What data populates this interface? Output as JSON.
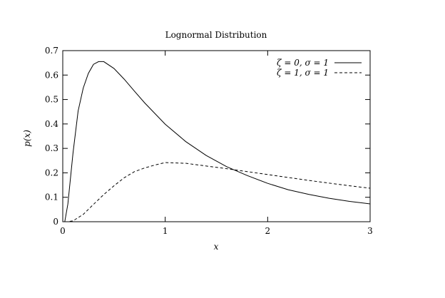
{
  "chart_data": {
    "type": "line",
    "title": "Lognormal Distribution",
    "xlabel": "x",
    "ylabel": "p(x)",
    "xlim": [
      0,
      3
    ],
    "ylim": [
      0,
      0.7
    ],
    "xticks": [
      "0",
      "1",
      "2",
      "3"
    ],
    "yticks": [
      "0",
      "0.1",
      "0.2",
      "0.3",
      "0.4",
      "0.5",
      "0.6",
      "0.7"
    ],
    "grid": false,
    "legend_position": "top-right",
    "series": [
      {
        "name": "ζ = 0, σ = 1",
        "zeta": 0,
        "sigma": 1,
        "style": "solid",
        "x": [
          0.02,
          0.05,
          0.1,
          0.15,
          0.2,
          0.25,
          0.3,
          0.35,
          0.4,
          0.5,
          0.6,
          0.7,
          0.8,
          1.0,
          1.2,
          1.4,
          1.6,
          1.8,
          2.0,
          2.2,
          2.4,
          2.6,
          2.8,
          3.0
        ],
        "y": [
          0.0009,
          0.0726,
          0.281,
          0.453,
          0.547,
          0.607,
          0.644,
          0.655,
          0.655,
          0.627,
          0.583,
          0.534,
          0.486,
          0.399,
          0.328,
          0.271,
          0.225,
          0.189,
          0.157,
          0.131,
          0.112,
          0.096,
          0.083,
          0.073
        ]
      },
      {
        "name": "ζ = 1, σ = 1",
        "zeta": 1,
        "sigma": 1,
        "style": "dashed",
        "x": [
          0.02,
          0.05,
          0.1,
          0.2,
          0.3,
          0.4,
          0.5,
          0.6,
          0.7,
          0.8,
          0.9,
          1.0,
          1.2,
          1.4,
          1.6,
          1.8,
          2.0,
          2.2,
          2.4,
          2.6,
          2.8,
          3.0
        ],
        "y": [
          0.0,
          0.00016,
          0.0035,
          0.03,
          0.071,
          0.111,
          0.147,
          0.18,
          0.205,
          0.22,
          0.232,
          0.242,
          0.239,
          0.228,
          0.217,
          0.205,
          0.193,
          0.181,
          0.169,
          0.158,
          0.147,
          0.137
        ]
      }
    ]
  }
}
